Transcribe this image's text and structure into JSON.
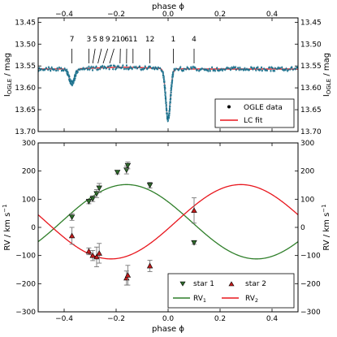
{
  "chart_data": [
    {
      "type": "scatter",
      "top_xlabel": "phase ϕ",
      "ylabel": "I",
      "ylabel_sub": "OGLE",
      "ylabel_unit": " / mag",
      "xlim": [
        -0.5,
        0.5
      ],
      "ylim": [
        13.7,
        13.44
      ],
      "x_ticks": [
        "−0.4",
        "−0.2",
        "0.0",
        "0.2",
        "0.4"
      ],
      "x_tick_values": [
        -0.4,
        -0.2,
        0.0,
        0.2,
        0.4
      ],
      "y_ticks": [
        "13.45",
        "13.50",
        "13.55",
        "13.60",
        "13.65",
        "13.70"
      ],
      "y_tick_values": [
        13.45,
        13.5,
        13.55,
        13.6,
        13.65,
        13.7
      ],
      "legend": {
        "position": "lower-right",
        "data_label": "OGLE data",
        "fit_label": "LC fit"
      },
      "colors": {
        "data": "#1a6f8a",
        "fit": "#e8161d"
      },
      "model": {
        "base": 13.557,
        "primary": {
          "center": 0.0,
          "depth": 0.116,
          "width": 0.009
        },
        "secondary": {
          "center": -0.37,
          "depth": 0.033,
          "width": 0.011
        }
      },
      "epoch_markers": [
        {
          "label": "7",
          "phase": -0.37
        },
        {
          "label": "3",
          "phase": -0.305
        },
        {
          "label": "5",
          "phase": -0.29
        },
        {
          "label": "8",
          "phase": -0.27
        },
        {
          "label": "9",
          "phase": -0.25
        },
        {
          "label": "2",
          "phase": -0.225
        },
        {
          "label": "10",
          "phase": -0.185
        },
        {
          "label": "6",
          "phase": -0.16
        },
        {
          "label": "11",
          "phase": -0.135
        },
        {
          "label": "12",
          "phase": -0.07
        },
        {
          "label": "1",
          "phase": 0.02
        },
        {
          "label": "4",
          "phase": 0.1
        }
      ]
    },
    {
      "type": "scatter",
      "xlabel": "phase ϕ",
      "ylabel": "RV  /  km s",
      "ylabel_sup": "−1",
      "xlim": [
        -0.5,
        0.5
      ],
      "ylim": [
        -300,
        300
      ],
      "x_ticks": [
        "−0.4",
        "−0.2",
        "0.0",
        "0.2",
        "0.4"
      ],
      "x_tick_values": [
        -0.4,
        -0.2,
        0.0,
        0.2,
        0.4
      ],
      "y_ticks": [
        "300",
        "200",
        "100",
        "0",
        "−100",
        "−200",
        "−300"
      ],
      "y_tick_values": [
        300,
        200,
        100,
        0,
        -100,
        -200,
        -300
      ],
      "legend": {
        "position": "lower-right",
        "star1": "star 1",
        "star2": "star 2",
        "rv1": "RV",
        "rv1_sub": "1",
        "rv2": "RV",
        "rv2_sub": "2"
      },
      "colors": {
        "star1": "#2e6b2b",
        "star2": "#c21c1c",
        "rv1": "#2f7f2a",
        "rv2": "#e8161d"
      },
      "model": {
        "gamma": 20,
        "K1": 132,
        "K2": 132,
        "phase_max1": -0.16,
        "phase_max2": 0.28
      },
      "star1_points": [
        {
          "x": -0.37,
          "y": 37,
          "err": 12
        },
        {
          "x": -0.305,
          "y": 92,
          "err": 8
        },
        {
          "x": -0.29,
          "y": 102,
          "err": 10
        },
        {
          "x": -0.275,
          "y": 120,
          "err": 14
        },
        {
          "x": -0.265,
          "y": 140,
          "err": 16
        },
        {
          "x": -0.195,
          "y": 196,
          "err": 6
        },
        {
          "x": -0.16,
          "y": 204,
          "err": 14
        },
        {
          "x": -0.155,
          "y": 220,
          "err": 12
        },
        {
          "x": -0.07,
          "y": 150,
          "err": 10
        },
        {
          "x": 0.1,
          "y": -54,
          "err": 6
        }
      ],
      "star2_points": [
        {
          "x": -0.37,
          "y": -30,
          "err": 30
        },
        {
          "x": -0.305,
          "y": -85,
          "err": 12
        },
        {
          "x": -0.29,
          "y": -100,
          "err": 18
        },
        {
          "x": -0.275,
          "y": -105,
          "err": 35
        },
        {
          "x": -0.265,
          "y": -92,
          "err": 35
        },
        {
          "x": -0.16,
          "y": -180,
          "err": 25
        },
        {
          "x": -0.155,
          "y": -170,
          "err": 35
        },
        {
          "x": -0.07,
          "y": -137,
          "err": 20
        },
        {
          "x": 0.1,
          "y": 60,
          "err": 45
        }
      ]
    }
  ]
}
